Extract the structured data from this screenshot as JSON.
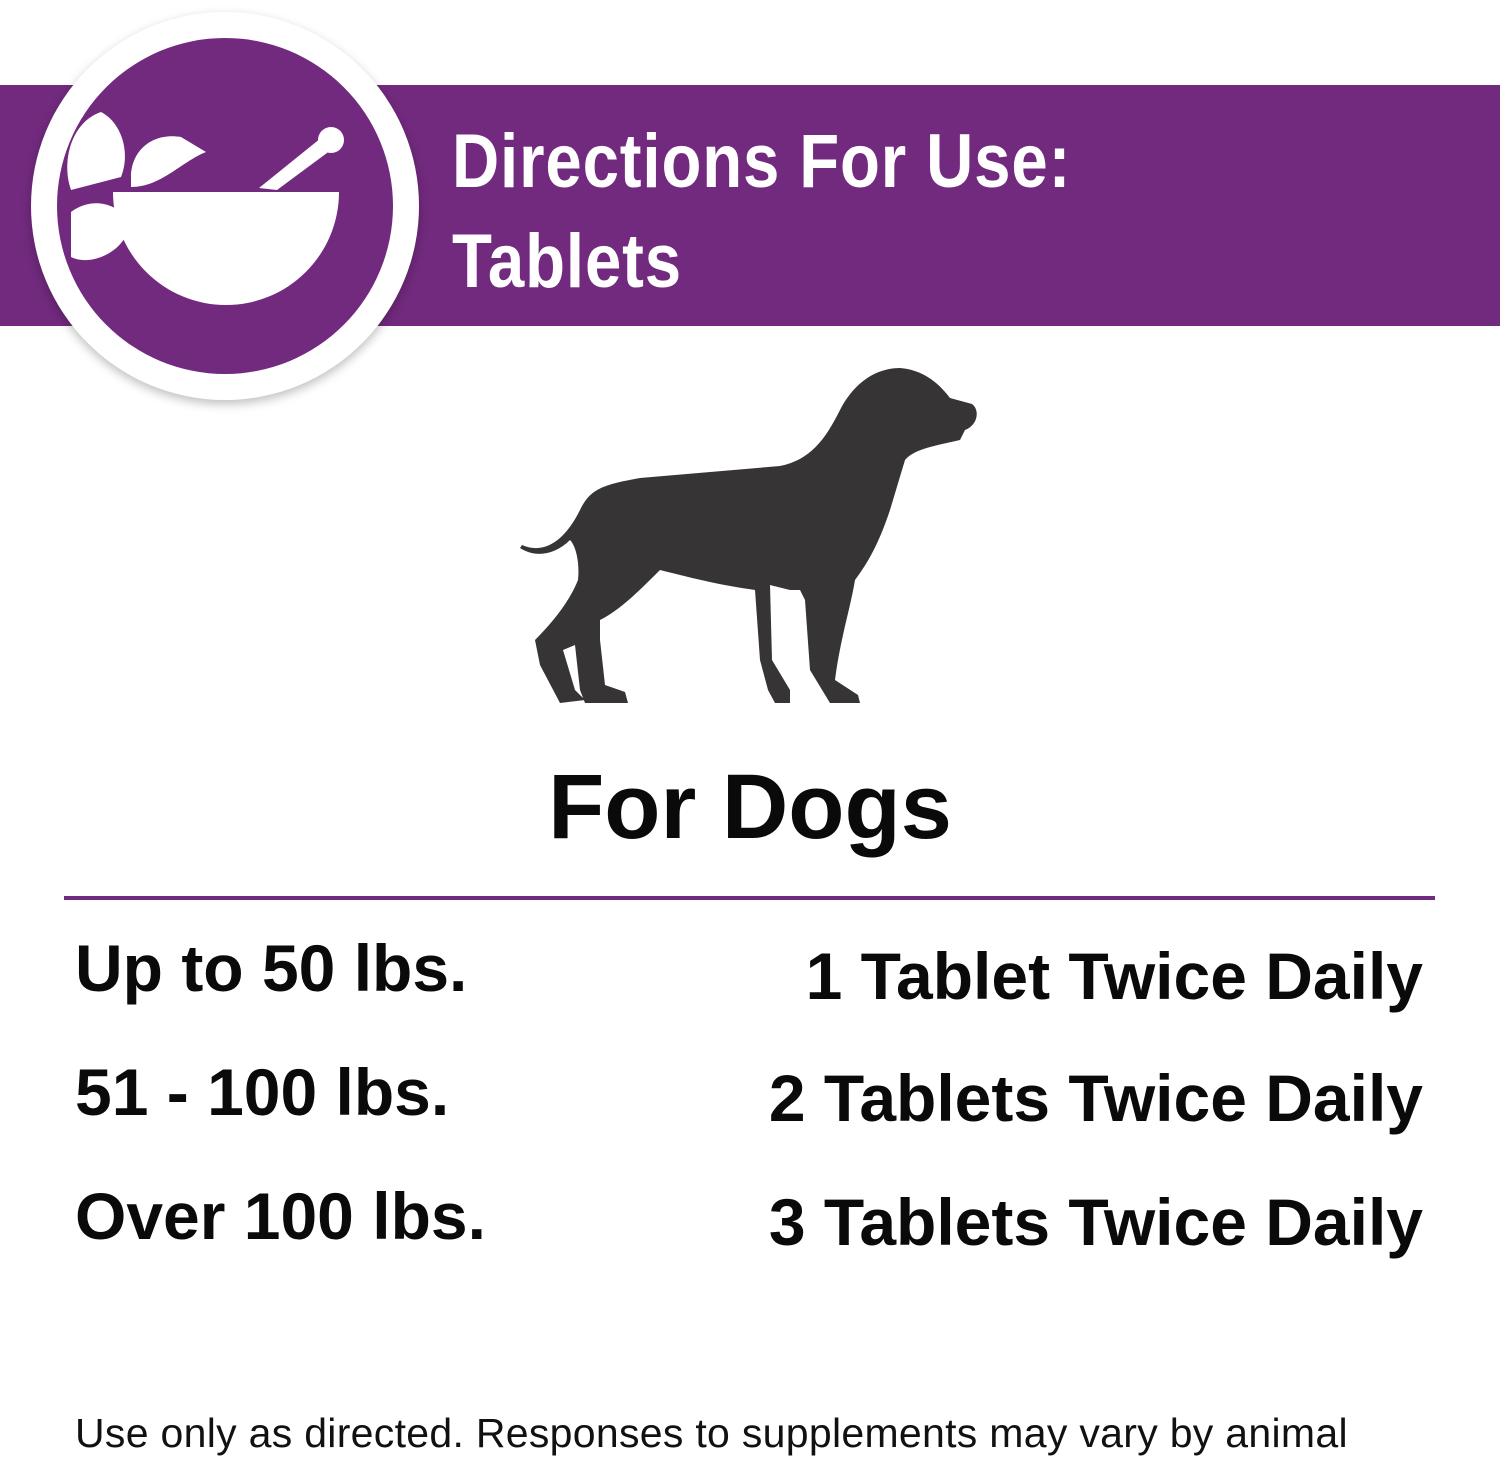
{
  "header": {
    "title_line1": "Directions For Use:",
    "title_line2": "Tablets",
    "accent_color": "#722a7e"
  },
  "icons": {
    "badge": "mortar-pestle-leaves-icon",
    "animal": "dog-silhouette-icon"
  },
  "section_title": "For Dogs",
  "dosage": [
    {
      "weight": "Up to 50 lbs.",
      "dose": "1 Tablet Twice Daily"
    },
    {
      "weight": "51 - 100 lbs.",
      "dose": "2 Tablets Twice Daily"
    },
    {
      "weight": "Over 100 lbs.",
      "dose": "3 Tablets Twice Daily"
    }
  ],
  "footer": "Use only as directed. Responses to supplements may vary by animal"
}
